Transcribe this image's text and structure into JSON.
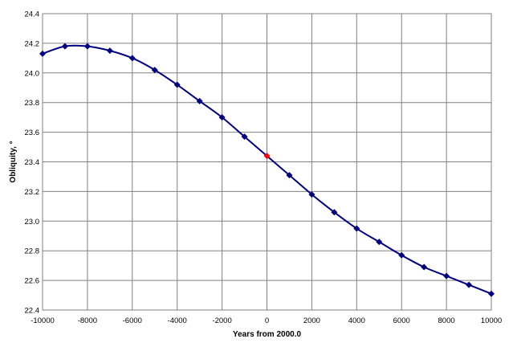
{
  "chart_data": {
    "type": "line",
    "title": "",
    "xlabel": "Years from 2000.0",
    "ylabel": "Obliquity, °",
    "xlim": [
      -10000,
      10000
    ],
    "ylim": [
      22.4,
      24.4
    ],
    "xticks": [
      -10000,
      -8000,
      -6000,
      -4000,
      -2000,
      0,
      2000,
      4000,
      6000,
      8000,
      10000
    ],
    "yticks": [
      22.4,
      22.6,
      22.8,
      23.0,
      23.2,
      23.4,
      23.6,
      23.8,
      24.0,
      24.2,
      24.4
    ],
    "xtick_labels": [
      "-10000",
      "-8000",
      "-6000",
      "-4000",
      "-2000",
      "0",
      "2000",
      "4000",
      "6000",
      "8000",
      "10000"
    ],
    "ytick_labels": [
      "22.4",
      "22.6",
      "22.8",
      "23.0",
      "23.2",
      "23.4",
      "23.6",
      "23.8",
      "24.0",
      "24.2",
      "24.4"
    ],
    "grid": true,
    "legend": "none",
    "series": [
      {
        "x": [
          -10000,
          -9000,
          -8000,
          -7000,
          -6000,
          -5000,
          -4000,
          -3000,
          -2000,
          -1000,
          0,
          1000,
          2000,
          3000,
          4000,
          5000,
          6000,
          7000,
          8000,
          9000,
          10000
        ],
        "y": [
          24.13,
          24.18,
          24.18,
          24.15,
          24.1,
          24.02,
          23.92,
          23.81,
          23.7,
          23.57,
          23.44,
          23.31,
          23.18,
          23.06,
          22.95,
          22.86,
          22.77,
          22.69,
          22.63,
          22.57,
          22.51
        ],
        "color": "#000080",
        "marker": "diamond",
        "highlight_x": 0,
        "highlight_color": "#ff0000"
      }
    ]
  }
}
